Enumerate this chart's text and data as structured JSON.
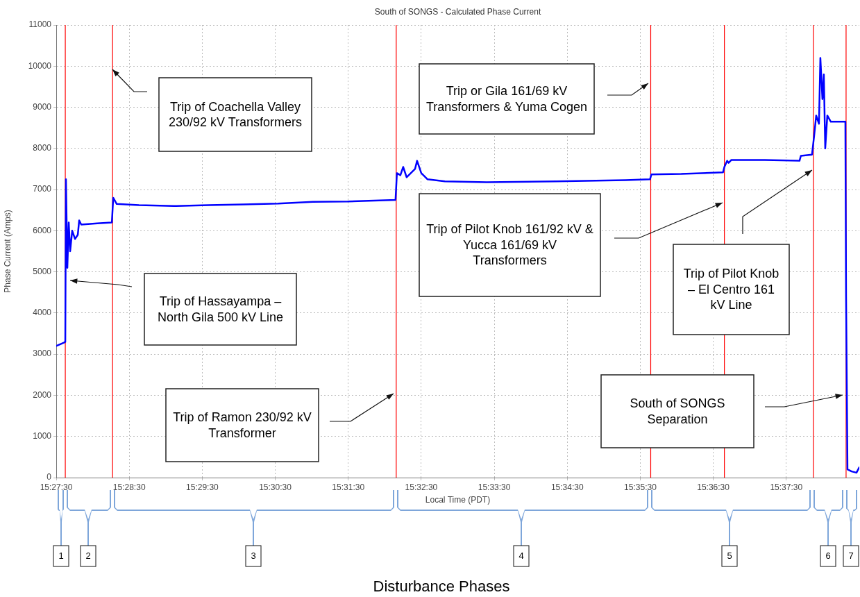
{
  "chart_data": {
    "type": "line",
    "title": "South of SONGS - Calculated Phase Current",
    "xlabel": "Local Time (PDT)",
    "ylabel": "Phase Current (Amps)",
    "x": [
      15.45833,
      15.46008,
      15.4604,
      15.46055,
      15.46087,
      15.46119,
      15.46151,
      15.46198,
      15.46262,
      15.46325,
      15.46357,
      15.46405,
      15.4677,
      15.47103,
      15.47135,
      15.47214,
      15.47722,
      15.48516,
      15.4931,
      15.50103,
      15.50897,
      15.5169,
      15.52484,
      15.53579,
      15.53611,
      15.5369,
      15.53754,
      15.53833,
      15.54024,
      15.54071,
      15.54167,
      15.5431,
      15.54706,
      15.55659,
      15.57246,
      15.58833,
      15.59389,
      15.59421,
      15.60103,
      15.61056,
      15.61087,
      15.61151,
      15.61183,
      15.61246,
      15.62008,
      15.62802,
      15.62833,
      15.63087,
      15.63135,
      15.63183,
      15.63246,
      15.63278,
      15.63325,
      15.63357,
      15.63389,
      15.63437,
      15.63516,
      15.63849,
      15.63865,
      15.63897,
      15.63992,
      15.64103,
      15.64167
    ],
    "series": [
      {
        "color": "#0000ff",
        "values": [
          3200,
          3280,
          3300,
          7250,
          5100,
          6200,
          5500,
          6000,
          5800,
          5900,
          6250,
          6150,
          6180,
          6200,
          6800,
          6650,
          6620,
          6600,
          6620,
          6640,
          6660,
          6700,
          6710,
          6750,
          7400,
          7350,
          7550,
          7300,
          7500,
          7700,
          7400,
          7250,
          7200,
          7180,
          7200,
          7230,
          7250,
          7370,
          7380,
          7420,
          7550,
          7700,
          7650,
          7720,
          7720,
          7700,
          7820,
          7850,
          8300,
          8800,
          8600,
          10200,
          9200,
          9800,
          8000,
          8800,
          8650,
          8650,
          4400,
          200,
          150,
          120,
          250
        ]
      }
    ],
    "xlim": [
      15.45833,
      15.64167
    ],
    "xticks": [
      {
        "value": 15.45833,
        "label": "15:27:30"
      },
      {
        "value": 15.475,
        "label": "15:28:30"
      },
      {
        "value": 15.49167,
        "label": "15:29:30"
      },
      {
        "value": 15.50833,
        "label": "15:30:30"
      },
      {
        "value": 15.525,
        "label": "15:31:30"
      },
      {
        "value": 15.54167,
        "label": "15:32:30"
      },
      {
        "value": 15.55833,
        "label": "15:33:30"
      },
      {
        "value": 15.575,
        "label": "15:34:30"
      },
      {
        "value": 15.59167,
        "label": "15:35:30"
      },
      {
        "value": 15.60833,
        "label": "15:36:30"
      },
      {
        "value": 15.625,
        "label": "15:37:30"
      }
    ],
    "ylim": [
      0,
      11000
    ],
    "yticks": [
      0,
      1000,
      2000,
      3000,
      4000,
      5000,
      6000,
      7000,
      8000,
      9000,
      10000,
      11000
    ],
    "grid": true,
    "legend": false,
    "marker": "none",
    "line_style": "solid",
    "ref_lines": [
      {
        "axis": "x",
        "value": 15.4604,
        "color": "#ff0000"
      },
      {
        "axis": "x",
        "value": 15.47119,
        "color": "#ff0000"
      },
      {
        "axis": "x",
        "value": 15.53595,
        "color": "#ff0000"
      },
      {
        "axis": "x",
        "value": 15.59405,
        "color": "#ff0000"
      },
      {
        "axis": "x",
        "value": 15.61087,
        "color": "#ff0000"
      },
      {
        "axis": "x",
        "value": 15.63119,
        "color": "#ff0000"
      },
      {
        "axis": "x",
        "value": 15.63865,
        "color": "#ff0000"
      }
    ],
    "annotations": [
      "Trip of Coachella Valley 230/92 kV Transformers",
      "Trip of Hassayampa – North Gila 500 kV Line",
      "Trip of Ramon 230/92 kV Transformer",
      "Trip or Gila 161/69 kV Transformers & Yuma Cogen",
      "Trip of Pilot Knob 161/92 kV & Yucca 161/69 kV Transformers",
      "Trip of Pilot Knob – El Centro 161 kV Line",
      "South of SONGS Separation",
      "1",
      "2",
      "3",
      "4",
      "5",
      "6",
      "7",
      "Disturbance Phases"
    ]
  }
}
